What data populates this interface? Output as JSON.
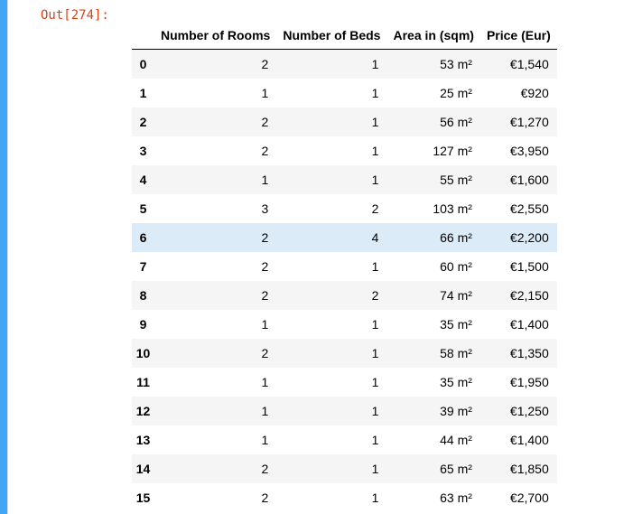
{
  "output_prompt": "Out[274]:",
  "table": {
    "columns": [
      "Number of Rooms",
      "Number of Beds",
      "Area in (sqm)",
      "Price (Eur)"
    ],
    "rows": [
      {
        "index": "0",
        "cells": [
          "2",
          "1",
          "53 m²",
          "€1,540"
        ]
      },
      {
        "index": "1",
        "cells": [
          "1",
          "1",
          "25 m²",
          "€920"
        ]
      },
      {
        "index": "2",
        "cells": [
          "2",
          "1",
          "56 m²",
          "€1,270"
        ]
      },
      {
        "index": "3",
        "cells": [
          "2",
          "1",
          "127 m²",
          "€3,950"
        ]
      },
      {
        "index": "4",
        "cells": [
          "1",
          "1",
          "55 m²",
          "€1,600"
        ]
      },
      {
        "index": "5",
        "cells": [
          "3",
          "2",
          "103 m²",
          "€2,550"
        ]
      },
      {
        "index": "6",
        "cells": [
          "2",
          "4",
          "66 m²",
          "€2,200"
        ]
      },
      {
        "index": "7",
        "cells": [
          "2",
          "1",
          "60 m²",
          "€1,500"
        ]
      },
      {
        "index": "8",
        "cells": [
          "2",
          "2",
          "74 m²",
          "€2,150"
        ]
      },
      {
        "index": "9",
        "cells": [
          "1",
          "1",
          "35 m²",
          "€1,400"
        ]
      },
      {
        "index": "10",
        "cells": [
          "2",
          "1",
          "58 m²",
          "€1,350"
        ]
      },
      {
        "index": "11",
        "cells": [
          "1",
          "1",
          "35 m²",
          "€1,950"
        ]
      },
      {
        "index": "12",
        "cells": [
          "1",
          "1",
          "39 m²",
          "€1,250"
        ]
      },
      {
        "index": "13",
        "cells": [
          "1",
          "1",
          "44 m²",
          "€1,400"
        ]
      },
      {
        "index": "14",
        "cells": [
          "2",
          "1",
          "65 m²",
          "€1,850"
        ]
      },
      {
        "index": "15",
        "cells": [
          "2",
          "1",
          "63 m²",
          "€2,700"
        ]
      }
    ],
    "highlighted_row": "6"
  },
  "colors": {
    "cell_bar": "#42a5f5",
    "prompt": "#d84315",
    "row_stripe": "#f5f5f5",
    "row_hover": "#dcebf8"
  }
}
